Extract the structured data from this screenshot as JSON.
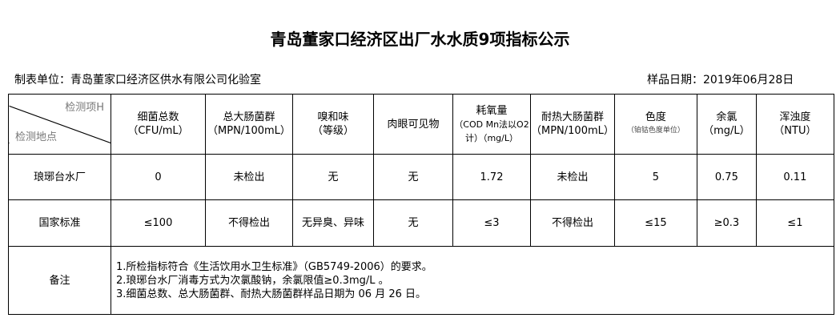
{
  "title": "青岛董家口经济区出厂水水质9项指标公示",
  "unit": "制表单位：青岛董家口经济区供水有限公司化验室",
  "sample_date": "样品日期：2019年06月28日",
  "header": {
    "corner_top": "检测项H",
    "corner_bottom": "检测地点",
    "cols": [
      {
        "name": "细菌总数",
        "unit": "（CFU/mL）"
      },
      {
        "name": "总大肠菌群",
        "unit": "（MPN/100mL）"
      },
      {
        "name": "嗅和味",
        "unit": "（等级）"
      },
      {
        "name": "肉眼可见物",
        "unit": ""
      },
      {
        "name": "耗氧量",
        "unit": "（COD Mn法以O2计）（mg/L）"
      },
      {
        "name": "耐热大肠菌群",
        "unit": "（MPN/100mL）"
      },
      {
        "name": "色度",
        "unit": "（铂钴色度单位）"
      },
      {
        "name": "余氯",
        "unit": "（mg/L）"
      },
      {
        "name": "浑浊度",
        "unit": "（NTU）"
      }
    ]
  },
  "rows": [
    {
      "label": "琅琊台水厂",
      "values": [
        "0",
        "未检出",
        "无",
        "无",
        "1.72",
        "未检出",
        "5",
        "0.75",
        "0.11"
      ]
    },
    {
      "label": "国家标准",
      "values": [
        "≤100",
        "不得检出",
        "无异臭、异味",
        "无",
        "≤3",
        "不得检出",
        "≤15",
        "≥0.3",
        "≤1"
      ]
    }
  ],
  "notes": {
    "label": "备注",
    "lines": [
      "1.所检指标符合《生活饮用水卫生标准》（GB5749-2006）的要求。",
      "2.琅琊台水厂消毒方式为次氯酸钠，余氯限值≥0.3mg/L 。",
      "3.细菌总数、总大肠菌群、耐热大肠菌群样品日期为 06 月 26 日。"
    ]
  }
}
